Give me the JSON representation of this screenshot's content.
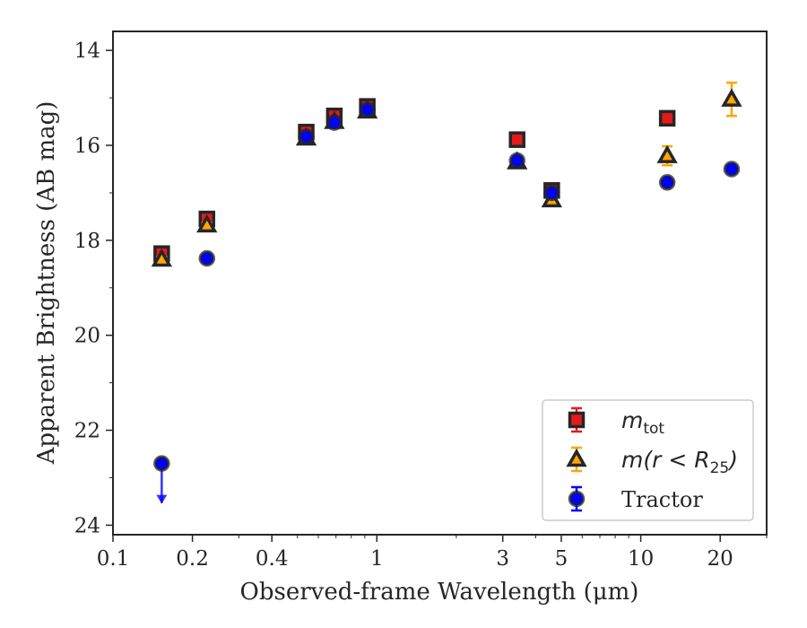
{
  "chart_data": {
    "type": "scatter",
    "title": "",
    "xlabel": "Observed-frame Wavelength (μm)",
    "ylabel": "Apparent Brightness (AB mag)",
    "xscale": "log",
    "xlim": [
      0.1,
      30
    ],
    "ylim": [
      24.2,
      13.6
    ],
    "y_inverted": true,
    "x_ticks": [
      0.1,
      0.2,
      0.4,
      1,
      3,
      5,
      10,
      20
    ],
    "x_tick_labels": [
      "0.1",
      "0.2",
      "0.4",
      "1",
      "3",
      "5",
      "10",
      "20"
    ],
    "y_ticks": [
      14,
      16,
      18,
      20,
      22,
      24
    ],
    "y_tick_labels": [
      "14",
      "16",
      "18",
      "20",
      "22",
      "24"
    ],
    "grid": false,
    "legend_position": "bottom-right",
    "series": [
      {
        "name_base": "m",
        "name_sub": "tot",
        "marker": "square",
        "face_color": "#e41a1c",
        "edge_color": "#262626",
        "error_color": "#e41a1c",
        "points": [
          {
            "x": 0.153,
            "y": 18.28,
            "err": 0.05
          },
          {
            "x": 0.227,
            "y": 17.55,
            "err": 0.05
          },
          {
            "x": 0.54,
            "y": 15.72,
            "err": 0.04
          },
          {
            "x": 0.69,
            "y": 15.38,
            "err": 0.04
          },
          {
            "x": 0.92,
            "y": 15.18,
            "err": 0.04
          },
          {
            "x": 3.4,
            "y": 15.88,
            "err": 0.04
          },
          {
            "x": 4.6,
            "y": 16.95,
            "err": 0.05
          },
          {
            "x": 12.6,
            "y": 15.43,
            "err": 0.05
          }
        ]
      },
      {
        "name_base": "m(r < R",
        "name_sub": "25",
        "name_tail": ")",
        "marker": "triangle",
        "face_color": "#ffa500",
        "edge_color": "#262626",
        "error_color": "#ffa500",
        "points": [
          {
            "x": 0.153,
            "y": 18.4,
            "err": 0.05
          },
          {
            "x": 0.227,
            "y": 17.68,
            "err": 0.05
          },
          {
            "x": 0.54,
            "y": 15.85,
            "err": 0.04
          },
          {
            "x": 0.69,
            "y": 15.5,
            "err": 0.04
          },
          {
            "x": 0.92,
            "y": 15.28,
            "err": 0.04
          },
          {
            "x": 3.4,
            "y": 16.35,
            "err": 0.05
          },
          {
            "x": 4.6,
            "y": 17.15,
            "err": 0.06
          },
          {
            "x": 12.6,
            "y": 16.22,
            "err": 0.2
          },
          {
            "x": 22.1,
            "y": 15.03,
            "err": 0.35
          }
        ]
      },
      {
        "name_base": "Tractor",
        "marker": "circle",
        "face_color": "#0000ff",
        "edge_color": "#262626",
        "error_color": "#0000ff",
        "points": [
          {
            "x": 0.153,
            "y": 22.7,
            "err": 0.0,
            "upper_limit": true
          },
          {
            "x": 0.227,
            "y": 18.38,
            "err": 0.04
          },
          {
            "x": 0.54,
            "y": 15.82,
            "err": 0.03
          },
          {
            "x": 0.69,
            "y": 15.52,
            "err": 0.03
          },
          {
            "x": 0.92,
            "y": 15.25,
            "err": 0.03
          },
          {
            "x": 3.4,
            "y": 16.32,
            "err": 0.03
          },
          {
            "x": 4.6,
            "y": 17.0,
            "err": 0.04
          },
          {
            "x": 12.6,
            "y": 16.78,
            "err": 0.04
          },
          {
            "x": 22.1,
            "y": 16.5,
            "err": 0.05
          }
        ]
      }
    ]
  }
}
